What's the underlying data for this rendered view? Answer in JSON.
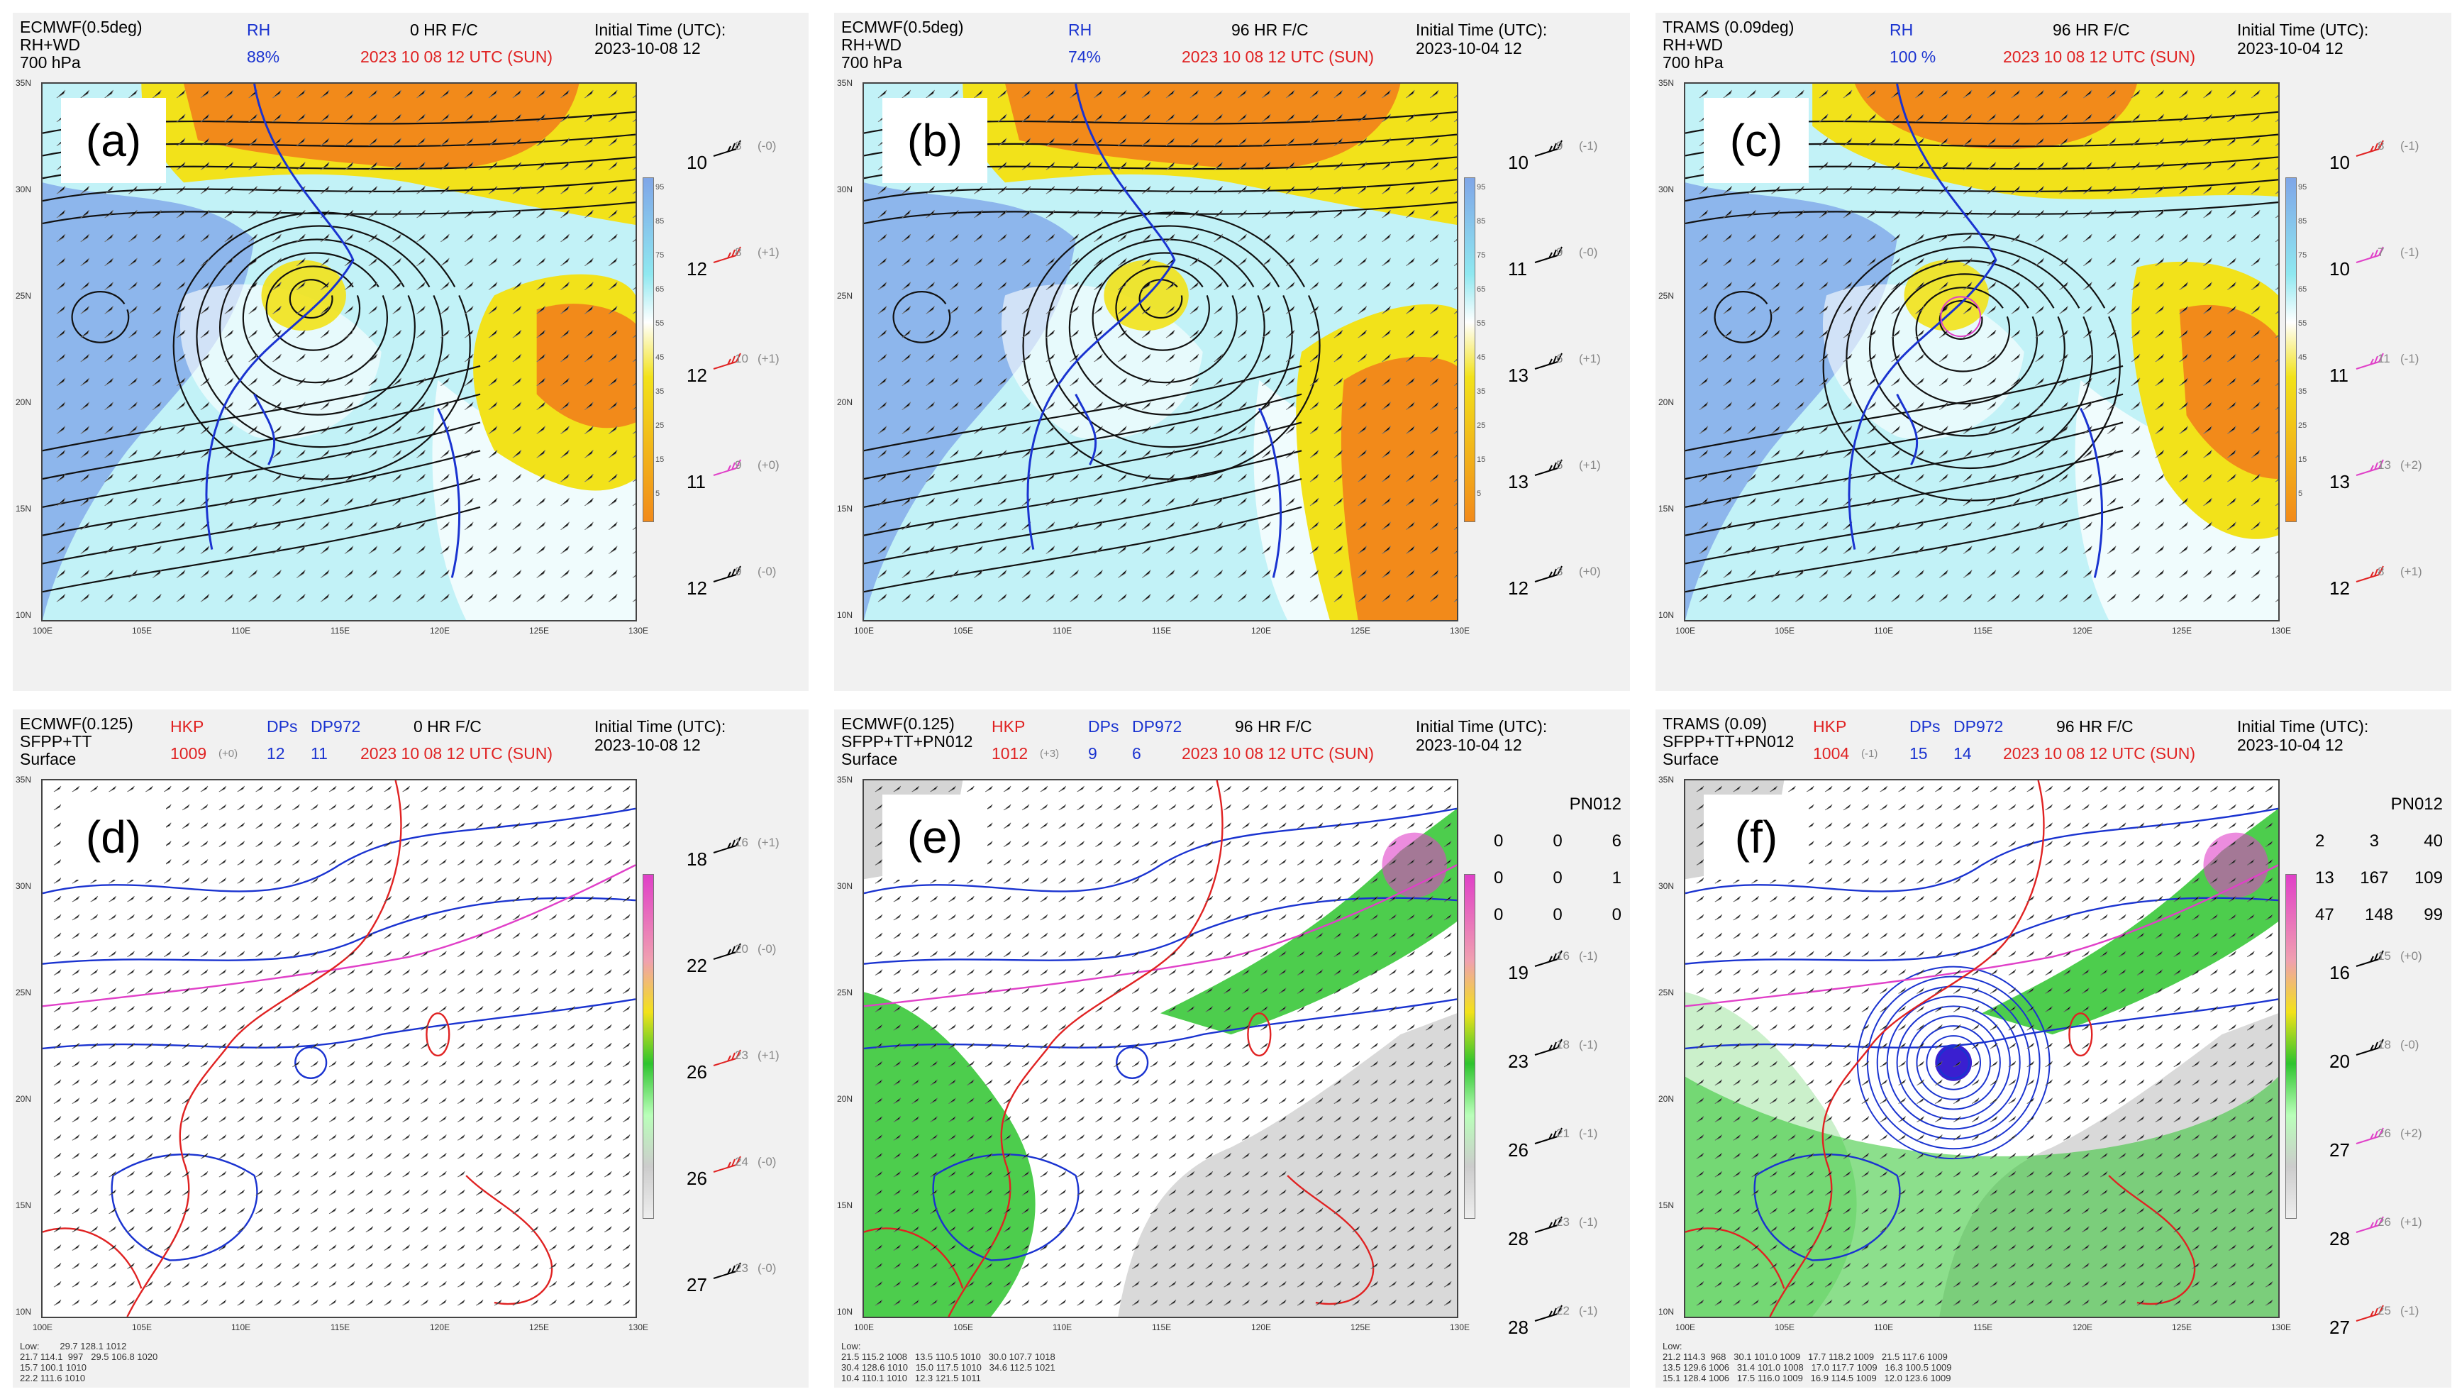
{
  "colors": {
    "rh_orange": "#f28a1a",
    "rh_yellow": "#f2e21a",
    "rh_cyan": "#8fe8f0",
    "rh_blue": "#7fa6e8",
    "green": "#2ec42e",
    "gray": "#b9b9b9",
    "red": "#e02222",
    "blue": "#1a33d0",
    "magenta": "#e040c8"
  },
  "axes": {
    "lat": [
      "35N",
      "30N",
      "25N",
      "20N",
      "15N",
      "10N"
    ],
    "lon": [
      "100E",
      "105E",
      "110E",
      "115E",
      "120E",
      "125E",
      "130E"
    ]
  },
  "rh_scale": [
    "95",
    "85",
    "75",
    "65",
    "55",
    "45",
    "35",
    "25",
    "15",
    "5"
  ],
  "panels": [
    {
      "id": "a",
      "label": "(a)",
      "model": "ECMWF(0.5deg)",
      "l2": "RH+WD",
      "l3": "700 hPa",
      "rh_title": "RH",
      "rh_val": "88%",
      "fc": "0 HR F/C",
      "init_lbl": "Initial Time (UTC):",
      "init_val": "2023-10-08  12",
      "valid": "2023 10 08   12 UTC (SUN)",
      "stations": [
        {
          "big": "10",
          "sm": "8",
          "dev": "(-0)"
        },
        {
          "big": "12",
          "sm": "8",
          "dev": "(+1)"
        },
        {
          "big": "12",
          "sm": "10",
          "dev": "(+1)"
        },
        {
          "big": "11",
          "sm": "9",
          "dev": "(+0)"
        },
        {
          "big": "12",
          "sm": "9",
          "dev": "(-0)"
        }
      ]
    },
    {
      "id": "b",
      "label": "(b)",
      "model": "ECMWF(0.5deg)",
      "l2": "RH+WD",
      "l3": "700 hPa",
      "rh_title": "RH",
      "rh_val": "74%",
      "fc": "96 HR F/C",
      "init_lbl": "Initial Time (UTC):",
      "init_val": "2023-10-04  12",
      "valid": "2023 10 08   12 UTC (SUN)",
      "stations": [
        {
          "big": "10",
          "sm": "9",
          "dev": "(-1)"
        },
        {
          "big": "11",
          "sm": "9",
          "dev": "(-0)"
        },
        {
          "big": "13",
          "sm": "6",
          "dev": "(+1)"
        },
        {
          "big": "13",
          "sm": "5",
          "dev": "(+1)"
        },
        {
          "big": "12",
          "sm": "3",
          "dev": "(+0)"
        }
      ]
    },
    {
      "id": "c",
      "label": "(c)",
      "model": "TRAMS (0.09deg)",
      "l2": "RH+WD",
      "l3": "700 hPa",
      "rh_title": "RH",
      "rh_val": "100 %",
      "fc": "96 HR F/C",
      "init_lbl": "Initial Time (UTC):",
      "init_val": "2023-10-04  12",
      "valid": "2023 10 08   12 UTC (SUN)",
      "stations": [
        {
          "big": "10",
          "sm": "8",
          "dev": "(-1)"
        },
        {
          "big": "10",
          "sm": "7",
          "dev": "(-1)"
        },
        {
          "big": "11",
          "sm": "11",
          "dev": "(-1)"
        },
        {
          "big": "13",
          "sm": "13",
          "dev": "(+2)"
        },
        {
          "big": "12",
          "sm": "8",
          "dev": "(+1)"
        }
      ]
    },
    {
      "id": "d",
      "label": "(d)",
      "model": "ECMWF(0.125)",
      "l2": "SFPP+TT",
      "l3": "Surface",
      "hkp_title": "HKP",
      "hkp_val": "1009",
      "hkp_dev": "(+0)",
      "dps_title": "DPs",
      "dps_val": "12",
      "dp972_title": "DP972",
      "dp972_val": "11",
      "fc": "0 HR F/C",
      "init_lbl": "Initial Time (UTC):",
      "init_val": "2023-10-08  12",
      "valid": "2023 10 08   12 UTC (SUN)",
      "stations": [
        {
          "big": "18",
          "sm": "16",
          "dev": "(+1)"
        },
        {
          "big": "22",
          "sm": "20",
          "dev": "(-0)"
        },
        {
          "big": "26",
          "sm": "23",
          "dev": "(+1)"
        },
        {
          "big": "26",
          "sm": "24",
          "dev": "(-0)"
        },
        {
          "big": "27",
          "sm": "23",
          "dev": "(-0)"
        }
      ],
      "footer": "Low:        29.7 128.1 1012\n21.7 114.1  997   29.5 106.8 1020\n15.7 100.1 1010\n22.2 111.6 1010"
    },
    {
      "id": "e",
      "label": "(e)",
      "model": "ECMWF(0.125)",
      "l2": "SFPP+TT+PN012",
      "l3": "Surface",
      "hkp_title": "HKP",
      "hkp_val": "1012",
      "hkp_dev": "(+3)",
      "dps_title": "DPs",
      "dps_val": "9",
      "dp972_title": "DP972",
      "dp972_val": "6",
      "fc": "96 HR F/C",
      "init_lbl": "Initial Time (UTC):",
      "init_val": "2023-10-04  12",
      "valid": "2023 10 08   12 UTC (SUN)",
      "pn_title": "PN012",
      "pn": [
        [
          "0",
          "0",
          "6"
        ],
        [
          "0",
          "0",
          "1"
        ],
        [
          "0",
          "0",
          "0"
        ]
      ],
      "stations": [
        {
          "big": "19",
          "sm": "16",
          "dev": "(-1)"
        },
        {
          "big": "23",
          "sm": "18",
          "dev": "(-1)"
        },
        {
          "big": "26",
          "sm": "21",
          "dev": "(-1)"
        },
        {
          "big": "28",
          "sm": "23",
          "dev": "(-1)"
        },
        {
          "big": "28",
          "sm": "22",
          "dev": "(-1)"
        }
      ],
      "footer": "Low:\n21.5 115.2 1008   13.5 110.5 1010   30.0 107.7 1018\n30.4 128.6 1010   15.0 117.5 1010   34.6 112.5 1021\n10.4 110.1 1010   12.3 121.5 1011"
    },
    {
      "id": "f",
      "label": "(f)",
      "model": "TRAMS (0.09)",
      "l2": "SFPP+TT+PN012",
      "l3": "Surface",
      "hkp_title": "HKP",
      "hkp_val": "1004",
      "hkp_dev": "(-1)",
      "dps_title": "DPs",
      "dps_val": "15",
      "dp972_title": "DP972",
      "dp972_val": "14",
      "fc": "96 HR F/C",
      "init_lbl": "Initial Time (UTC):",
      "init_val": "2023-10-04  12",
      "valid": "2023 10 08   12 UTC (SUN)",
      "pn_title": "PN012",
      "pn": [
        [
          "2",
          "3",
          "40"
        ],
        [
          "13",
          "167",
          "109"
        ],
        [
          "47",
          "148",
          "99"
        ]
      ],
      "stations": [
        {
          "big": "16",
          "sm": "15",
          "dev": "(+0)"
        },
        {
          "big": "20",
          "sm": "18",
          "dev": "(-0)"
        },
        {
          "big": "27",
          "sm": "26",
          "dev": "(+2)"
        },
        {
          "big": "28",
          "sm": "26",
          "dev": "(+1)"
        },
        {
          "big": "27",
          "sm": "25",
          "dev": "(-1)"
        }
      ],
      "footer": "Low:\n21.2 114.3  968   30.1 101.0 1009   17.7 118.2 1009   21.5 117.6 1009\n13.5 129.6 1006   31.4 101.0 1008   17.0 117.7 1009   16.3 100.5 1009\n15.1 128.4 1006   17.5 116.0 1009   16.9 114.5 1009   12.0 123.6 1009"
    }
  ]
}
